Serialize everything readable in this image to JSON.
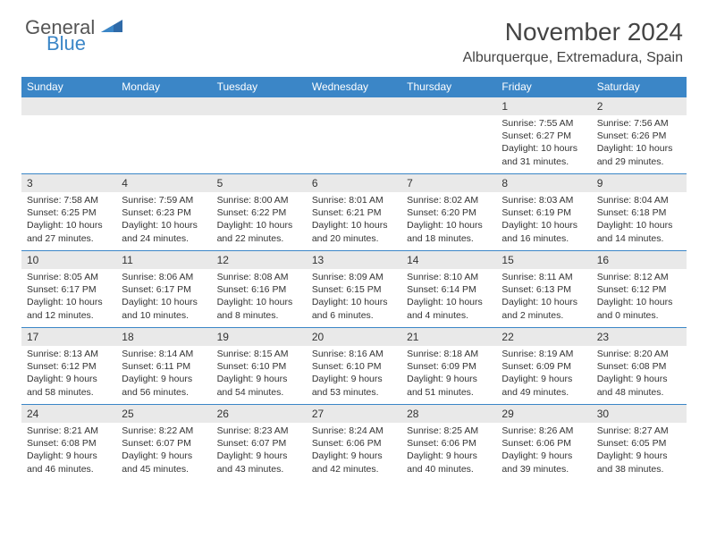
{
  "brand": {
    "general": "General",
    "blue": "Blue"
  },
  "title": "November 2024",
  "location": "Alburquerque, Extremadura, Spain",
  "colors": {
    "accent": "#3b86c7",
    "band": "#e9e9e9",
    "text": "#333333",
    "bg": "#ffffff"
  },
  "dayHeaders": [
    "Sunday",
    "Monday",
    "Tuesday",
    "Wednesday",
    "Thursday",
    "Friday",
    "Saturday"
  ],
  "weeks": [
    [
      null,
      null,
      null,
      null,
      null,
      {
        "n": "1",
        "sr": "Sunrise: 7:55 AM",
        "ss": "Sunset: 6:27 PM",
        "d1": "Daylight: 10 hours",
        "d2": "and 31 minutes."
      },
      {
        "n": "2",
        "sr": "Sunrise: 7:56 AM",
        "ss": "Sunset: 6:26 PM",
        "d1": "Daylight: 10 hours",
        "d2": "and 29 minutes."
      }
    ],
    [
      {
        "n": "3",
        "sr": "Sunrise: 7:58 AM",
        "ss": "Sunset: 6:25 PM",
        "d1": "Daylight: 10 hours",
        "d2": "and 27 minutes."
      },
      {
        "n": "4",
        "sr": "Sunrise: 7:59 AM",
        "ss": "Sunset: 6:23 PM",
        "d1": "Daylight: 10 hours",
        "d2": "and 24 minutes."
      },
      {
        "n": "5",
        "sr": "Sunrise: 8:00 AM",
        "ss": "Sunset: 6:22 PM",
        "d1": "Daylight: 10 hours",
        "d2": "and 22 minutes."
      },
      {
        "n": "6",
        "sr": "Sunrise: 8:01 AM",
        "ss": "Sunset: 6:21 PM",
        "d1": "Daylight: 10 hours",
        "d2": "and 20 minutes."
      },
      {
        "n": "7",
        "sr": "Sunrise: 8:02 AM",
        "ss": "Sunset: 6:20 PM",
        "d1": "Daylight: 10 hours",
        "d2": "and 18 minutes."
      },
      {
        "n": "8",
        "sr": "Sunrise: 8:03 AM",
        "ss": "Sunset: 6:19 PM",
        "d1": "Daylight: 10 hours",
        "d2": "and 16 minutes."
      },
      {
        "n": "9",
        "sr": "Sunrise: 8:04 AM",
        "ss": "Sunset: 6:18 PM",
        "d1": "Daylight: 10 hours",
        "d2": "and 14 minutes."
      }
    ],
    [
      {
        "n": "10",
        "sr": "Sunrise: 8:05 AM",
        "ss": "Sunset: 6:17 PM",
        "d1": "Daylight: 10 hours",
        "d2": "and 12 minutes."
      },
      {
        "n": "11",
        "sr": "Sunrise: 8:06 AM",
        "ss": "Sunset: 6:17 PM",
        "d1": "Daylight: 10 hours",
        "d2": "and 10 minutes."
      },
      {
        "n": "12",
        "sr": "Sunrise: 8:08 AM",
        "ss": "Sunset: 6:16 PM",
        "d1": "Daylight: 10 hours",
        "d2": "and 8 minutes."
      },
      {
        "n": "13",
        "sr": "Sunrise: 8:09 AM",
        "ss": "Sunset: 6:15 PM",
        "d1": "Daylight: 10 hours",
        "d2": "and 6 minutes."
      },
      {
        "n": "14",
        "sr": "Sunrise: 8:10 AM",
        "ss": "Sunset: 6:14 PM",
        "d1": "Daylight: 10 hours",
        "d2": "and 4 minutes."
      },
      {
        "n": "15",
        "sr": "Sunrise: 8:11 AM",
        "ss": "Sunset: 6:13 PM",
        "d1": "Daylight: 10 hours",
        "d2": "and 2 minutes."
      },
      {
        "n": "16",
        "sr": "Sunrise: 8:12 AM",
        "ss": "Sunset: 6:12 PM",
        "d1": "Daylight: 10 hours",
        "d2": "and 0 minutes."
      }
    ],
    [
      {
        "n": "17",
        "sr": "Sunrise: 8:13 AM",
        "ss": "Sunset: 6:12 PM",
        "d1": "Daylight: 9 hours",
        "d2": "and 58 minutes."
      },
      {
        "n": "18",
        "sr": "Sunrise: 8:14 AM",
        "ss": "Sunset: 6:11 PM",
        "d1": "Daylight: 9 hours",
        "d2": "and 56 minutes."
      },
      {
        "n": "19",
        "sr": "Sunrise: 8:15 AM",
        "ss": "Sunset: 6:10 PM",
        "d1": "Daylight: 9 hours",
        "d2": "and 54 minutes."
      },
      {
        "n": "20",
        "sr": "Sunrise: 8:16 AM",
        "ss": "Sunset: 6:10 PM",
        "d1": "Daylight: 9 hours",
        "d2": "and 53 minutes."
      },
      {
        "n": "21",
        "sr": "Sunrise: 8:18 AM",
        "ss": "Sunset: 6:09 PM",
        "d1": "Daylight: 9 hours",
        "d2": "and 51 minutes."
      },
      {
        "n": "22",
        "sr": "Sunrise: 8:19 AM",
        "ss": "Sunset: 6:09 PM",
        "d1": "Daylight: 9 hours",
        "d2": "and 49 minutes."
      },
      {
        "n": "23",
        "sr": "Sunrise: 8:20 AM",
        "ss": "Sunset: 6:08 PM",
        "d1": "Daylight: 9 hours",
        "d2": "and 48 minutes."
      }
    ],
    [
      {
        "n": "24",
        "sr": "Sunrise: 8:21 AM",
        "ss": "Sunset: 6:08 PM",
        "d1": "Daylight: 9 hours",
        "d2": "and 46 minutes."
      },
      {
        "n": "25",
        "sr": "Sunrise: 8:22 AM",
        "ss": "Sunset: 6:07 PM",
        "d1": "Daylight: 9 hours",
        "d2": "and 45 minutes."
      },
      {
        "n": "26",
        "sr": "Sunrise: 8:23 AM",
        "ss": "Sunset: 6:07 PM",
        "d1": "Daylight: 9 hours",
        "d2": "and 43 minutes."
      },
      {
        "n": "27",
        "sr": "Sunrise: 8:24 AM",
        "ss": "Sunset: 6:06 PM",
        "d1": "Daylight: 9 hours",
        "d2": "and 42 minutes."
      },
      {
        "n": "28",
        "sr": "Sunrise: 8:25 AM",
        "ss": "Sunset: 6:06 PM",
        "d1": "Daylight: 9 hours",
        "d2": "and 40 minutes."
      },
      {
        "n": "29",
        "sr": "Sunrise: 8:26 AM",
        "ss": "Sunset: 6:06 PM",
        "d1": "Daylight: 9 hours",
        "d2": "and 39 minutes."
      },
      {
        "n": "30",
        "sr": "Sunrise: 8:27 AM",
        "ss": "Sunset: 6:05 PM",
        "d1": "Daylight: 9 hours",
        "d2": "and 38 minutes."
      }
    ]
  ]
}
